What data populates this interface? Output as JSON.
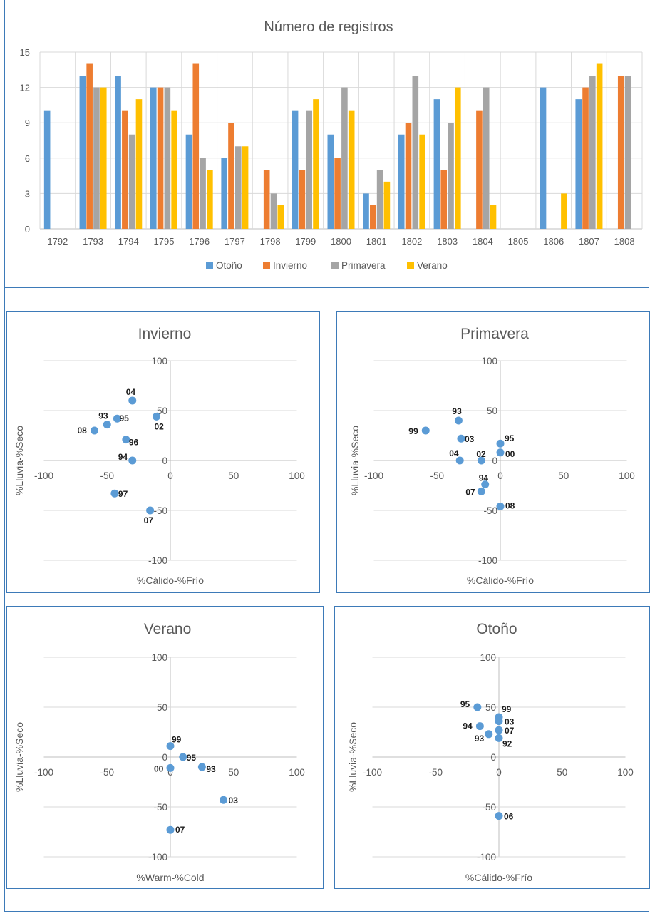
{
  "chart_data": [
    {
      "type": "bar",
      "title": "Número de registros",
      "categories": [
        "1792",
        "1793",
        "1794",
        "1795",
        "1796",
        "1797",
        "1798",
        "1799",
        "1800",
        "1801",
        "1802",
        "1803",
        "1804",
        "1805",
        "1806",
        "1807",
        "1808"
      ],
      "series": [
        {
          "name": "Otoño",
          "color": "#5b9bd5",
          "values": [
            10,
            13,
            13,
            12,
            8,
            6,
            null,
            10,
            8,
            3,
            8,
            11,
            null,
            null,
            12,
            11,
            null
          ]
        },
        {
          "name": "Invierno",
          "color": "#ed7d31",
          "values": [
            null,
            14,
            10,
            12,
            14,
            9,
            5,
            5,
            6,
            2,
            9,
            5,
            10,
            null,
            null,
            12,
            13
          ]
        },
        {
          "name": "Primavera",
          "color": "#a5a5a5",
          "values": [
            null,
            12,
            8,
            12,
            6,
            7,
            3,
            10,
            12,
            5,
            13,
            9,
            12,
            null,
            null,
            13,
            13
          ]
        },
        {
          "name": "Verano",
          "color": "#ffc000",
          "values": [
            null,
            12,
            11,
            10,
            5,
            7,
            2,
            11,
            10,
            4,
            8,
            12,
            2,
            null,
            3,
            14,
            null
          ]
        }
      ],
      "yticks": [
        "0",
        "3",
        "6",
        "9",
        "12",
        "15"
      ],
      "ylim": [
        0,
        15
      ],
      "grid": true,
      "legend": "bottom"
    },
    {
      "type": "scatter",
      "title": "Invierno",
      "xlabel": "%Cálido-%Frío",
      "ylabel": "%Lluvia-%Seco",
      "xlim": [
        -100,
        100
      ],
      "ylim": [
        -100,
        100
      ],
      "xticks": [
        "-100",
        "-50",
        "0",
        "50",
        "100"
      ],
      "yticks": [
        "-100",
        "-50",
        "0",
        "50",
        "100"
      ],
      "color": "#5b9bd5",
      "points": [
        {
          "label": "04",
          "x": -30,
          "y": 60
        },
        {
          "label": "02",
          "x": -11,
          "y": 44
        },
        {
          "label": "93",
          "x": -50,
          "y": 36
        },
        {
          "label": "95",
          "x": -42,
          "y": 42
        },
        {
          "label": "08",
          "x": -60,
          "y": 30
        },
        {
          "label": "96",
          "x": -35,
          "y": 21
        },
        {
          "label": "94",
          "x": -30,
          "y": 0
        },
        {
          "label": "97",
          "x": -44,
          "y": -33
        },
        {
          "label": "07",
          "x": -16,
          "y": -50
        }
      ]
    },
    {
      "type": "scatter",
      "title": "Primavera",
      "xlabel": "%Cálido-%Frío",
      "ylabel": "%Lluvia-%Seco",
      "xlim": [
        -100,
        100
      ],
      "ylim": [
        -100,
        100
      ],
      "xticks": [
        "-100",
        "-50",
        "0",
        "50",
        "100"
      ],
      "yticks": [
        "-100",
        "-50",
        "0",
        "50",
        "100"
      ],
      "color": "#5b9bd5",
      "points": [
        {
          "label": "93",
          "x": -33,
          "y": 40
        },
        {
          "label": "99",
          "x": -59,
          "y": 30
        },
        {
          "label": "03",
          "x": -31,
          "y": 22
        },
        {
          "label": "95",
          "x": 0,
          "y": 17
        },
        {
          "label": "00",
          "x": 0,
          "y": 8
        },
        {
          "label": "04",
          "x": -32,
          "y": 0
        },
        {
          "label": "02",
          "x": -15,
          "y": 0
        },
        {
          "label": "94",
          "x": -12,
          "y": -24
        },
        {
          "label": "07",
          "x": -15,
          "y": -31
        },
        {
          "label": "08",
          "x": 0,
          "y": -46
        }
      ]
    },
    {
      "type": "scatter",
      "title": "Verano",
      "xlabel": "%Warm-%Cold",
      "ylabel": "%Lluvia-%Seco",
      "xlim": [
        -100,
        100
      ],
      "ylim": [
        -100,
        100
      ],
      "xticks": [
        "-100",
        "-50",
        "0",
        "50",
        "100"
      ],
      "yticks": [
        "-100",
        "-50",
        "0",
        "50",
        "100"
      ],
      "color": "#5b9bd5",
      "points": [
        {
          "label": "99",
          "x": 0,
          "y": 11
        },
        {
          "label": "95",
          "x": 10,
          "y": 0
        },
        {
          "label": "00",
          "x": 0,
          "y": -11
        },
        {
          "label": "93",
          "x": 25,
          "y": -10
        },
        {
          "label": "03",
          "x": 42,
          "y": -43
        },
        {
          "label": "07",
          "x": 0,
          "y": -73
        }
      ]
    },
    {
      "type": "scatter",
      "title": "Otoño",
      "xlabel": "%Cálido-%Frío",
      "ylabel": "%Lluvia-%Seco",
      "xlim": [
        -100,
        100
      ],
      "ylim": [
        -100,
        100
      ],
      "xticks": [
        "-100",
        "-50",
        "0",
        "50",
        "100"
      ],
      "yticks": [
        "-100",
        "-50",
        "0",
        "50",
        "100"
      ],
      "color": "#5b9bd5",
      "points": [
        {
          "label": "95",
          "x": -17,
          "y": 50
        },
        {
          "label": "99",
          "x": 0,
          "y": 40
        },
        {
          "label": "03",
          "x": 0,
          "y": 36
        },
        {
          "label": "94",
          "x": -15,
          "y": 31
        },
        {
          "label": "07",
          "x": 0,
          "y": 27
        },
        {
          "label": "93",
          "x": -8,
          "y": 23
        },
        {
          "label": "92",
          "x": 0,
          "y": 19
        },
        {
          "label": "06",
          "x": 0,
          "y": -59
        }
      ]
    }
  ]
}
